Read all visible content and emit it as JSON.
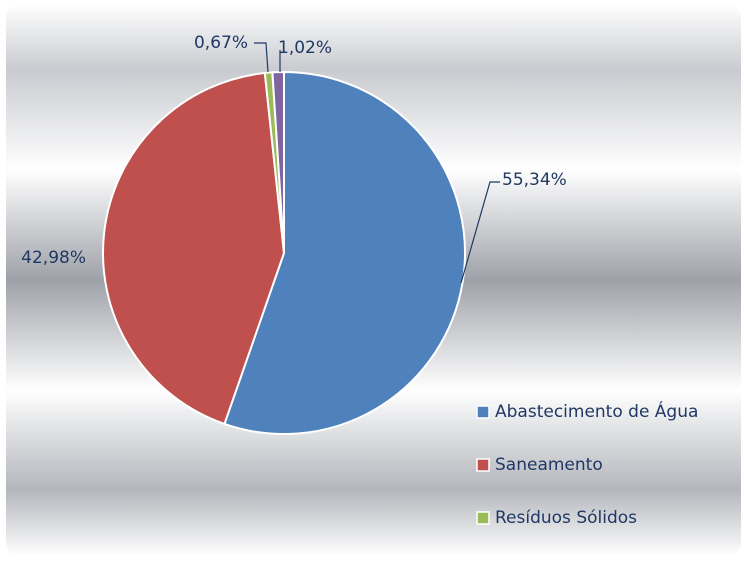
{
  "chart_data": {
    "type": "pie",
    "categories": [
      "Abastecimento de Água",
      "Saneamento",
      "Resíduos Sólidos",
      null
    ],
    "values": [
      55.34,
      42.98,
      0.67,
      1.02
    ],
    "value_labels": [
      "55,34%",
      "42,98%",
      "0,67%",
      "1,02%"
    ],
    "colors": [
      "#4f81bd",
      "#c0504d",
      "#9bbb59",
      "#8064a2"
    ],
    "legend": "right"
  }
}
